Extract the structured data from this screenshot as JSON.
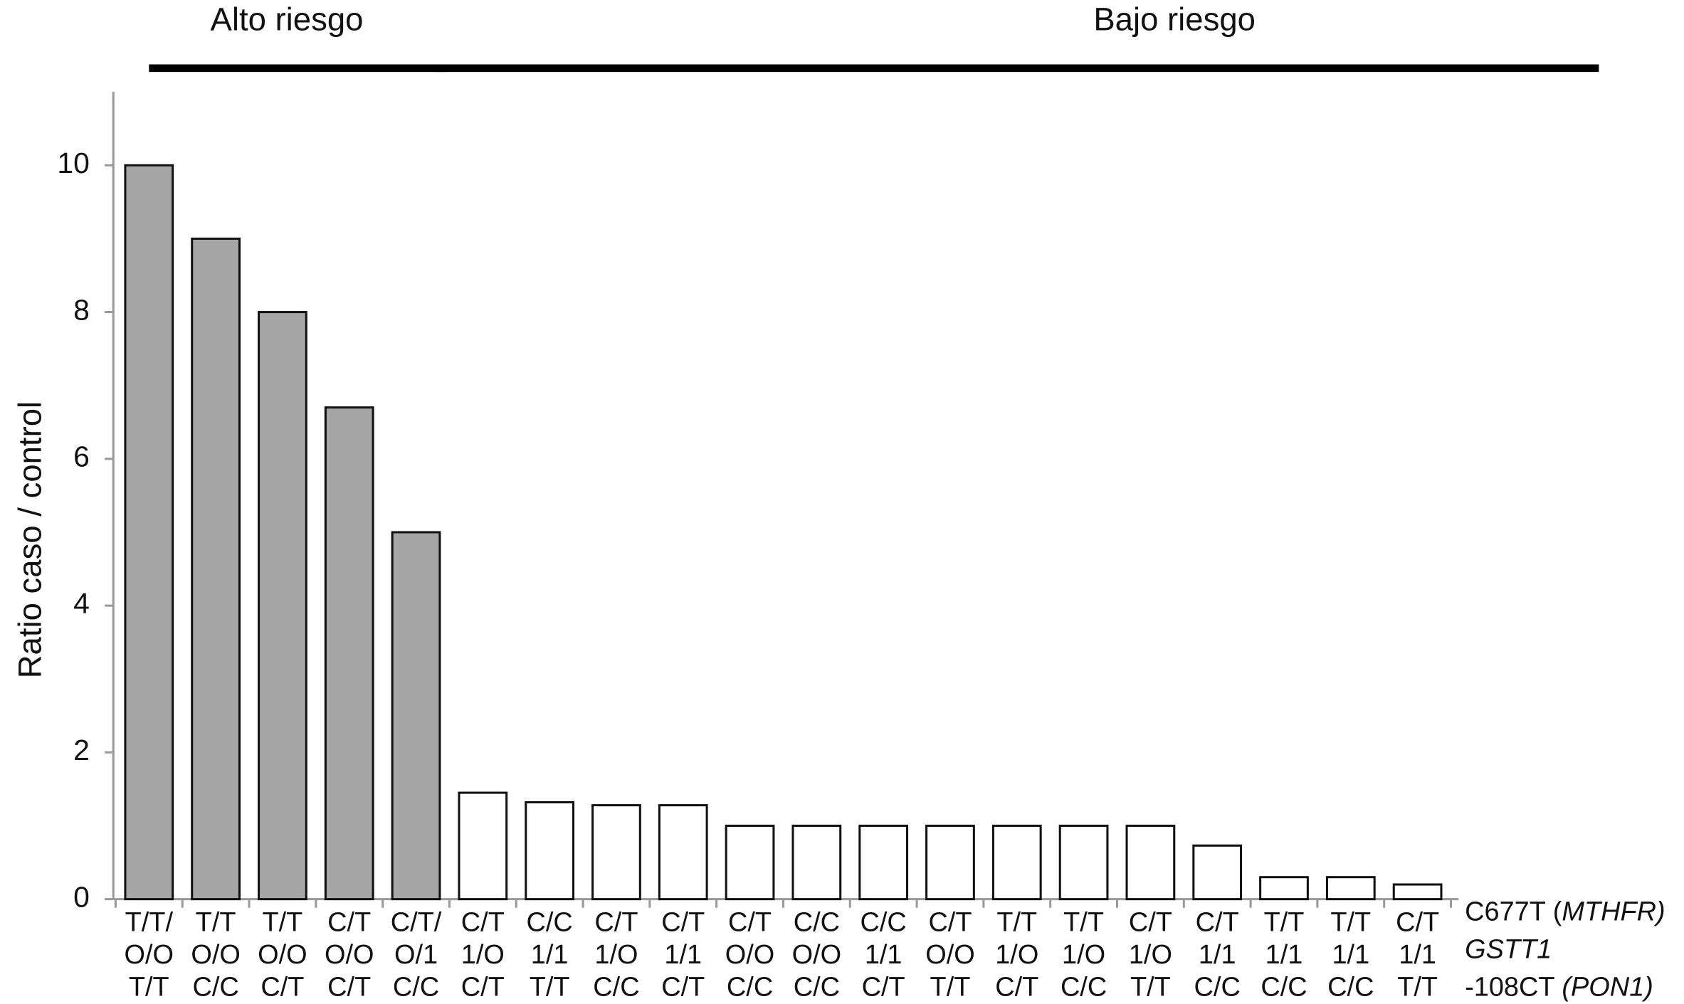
{
  "chart_data": {
    "type": "bar",
    "ylabel": "Ratio caso / control",
    "categories": [
      [
        "T/T/",
        "O/O",
        "T/T"
      ],
      [
        "T/T",
        "O/O",
        "C/C"
      ],
      [
        "T/T",
        "O/O",
        "C/T"
      ],
      [
        "C/T",
        "O/O",
        "C/T"
      ],
      [
        "C/T/",
        "O/1",
        "C/C"
      ],
      [
        "C/T",
        "1/O",
        "C/T"
      ],
      [
        "C/C",
        "1/1",
        "T/T"
      ],
      [
        "C/T",
        "1/O",
        "C/C"
      ],
      [
        "C/T",
        "1/1",
        "C/T"
      ],
      [
        "C/T",
        "O/O",
        "C/C"
      ],
      [
        "C/C",
        "O/O",
        "C/C"
      ],
      [
        "C/C",
        "1/1",
        "C/T"
      ],
      [
        "C/T",
        "O/O",
        "T/T"
      ],
      [
        "T/T",
        "1/O",
        "C/T"
      ],
      [
        "T/T",
        "1/O",
        "C/C"
      ],
      [
        "C/T",
        "1/O",
        "T/T"
      ],
      [
        "C/T",
        "1/1",
        "C/C"
      ],
      [
        "T/T",
        "1/1",
        "C/C"
      ],
      [
        "T/T",
        "1/1",
        "C/C"
      ],
      [
        "C/T",
        "1/1",
        "T/T"
      ]
    ],
    "values": [
      10,
      9,
      8,
      6.7,
      5,
      1.45,
      1.32,
      1.28,
      1.28,
      1.0,
      1.0,
      1.0,
      1.0,
      1.0,
      1.0,
      1.0,
      0.73,
      0.3,
      0.3,
      0.2
    ],
    "groups": [
      {
        "label": "Alto riesgo",
        "start": 0,
        "end": 4,
        "color": "#a6a6a6"
      },
      {
        "label": "Bajo riesgo",
        "start": 5,
        "end": 19,
        "color": "#ffffff"
      }
    ],
    "row_labels": [
      {
        "text": "C677T (",
        "italic": "MTHFR)"
      },
      {
        "italic": "GSTT1"
      },
      {
        "text": "-108CT ",
        "italic": "(PON1)"
      }
    ],
    "ylim": [
      0,
      11
    ],
    "yticks": [
      0,
      2,
      4,
      6,
      8,
      10
    ]
  }
}
